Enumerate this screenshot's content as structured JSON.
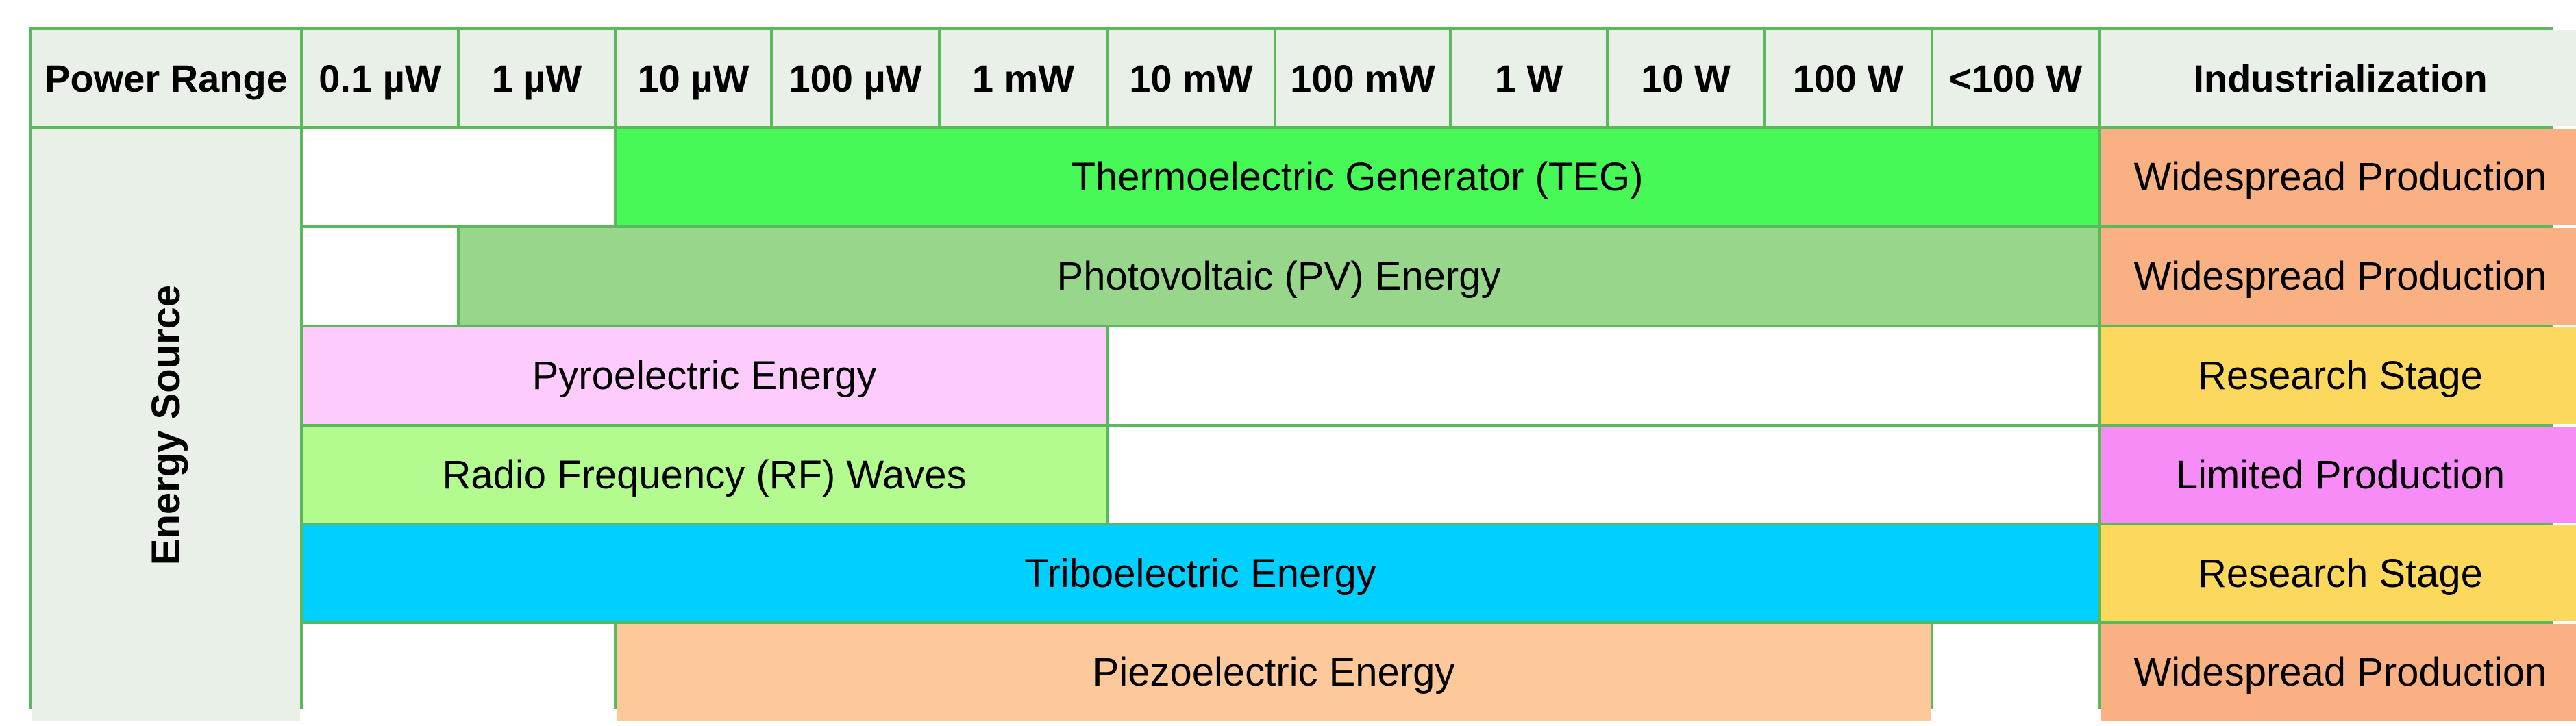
{
  "header": {
    "power_range_label": "Power Range",
    "power_levels": [
      "0.1 µW",
      "1 µW",
      "10 µW",
      "100 µW",
      "1 mW",
      "10 mW",
      "100 mW",
      "1 W",
      "10 W",
      "100 W",
      "<100 W"
    ],
    "industrialization_label": "Industrialization"
  },
  "row_axis_label": "Energy Source",
  "rows": [
    {
      "label": "Thermoelectric Generator (TEG)",
      "range": [
        "10 µW",
        "<100 W"
      ],
      "color": "#46f956",
      "status": "Widespread Production",
      "status_color": "#f9b183"
    },
    {
      "label": "Photovoltaic (PV) Energy",
      "range": [
        "1 µW",
        "<100 W"
      ],
      "color": "#98d68c",
      "status": "Widespread Production",
      "status_color": "#f9b183"
    },
    {
      "label": "Pyroelectric Energy",
      "range": [
        "0.1 µW",
        "1 mW"
      ],
      "color": "#fecbfd",
      "status": "Research Stage",
      "status_color": "#fcd85d"
    },
    {
      "label": "Radio Frequency (RF) Waves",
      "range": [
        "0.1 µW",
        "1 mW"
      ],
      "color": "#b3fb8f",
      "status": "Limited Production",
      "status_color": "#f88cf6"
    },
    {
      "label": "Triboelectric Energy",
      "range": [
        "0.1 µW",
        "<100 W"
      ],
      "color": "#00d0ff",
      "status": "Research Stage",
      "status_color": "#fcd85d"
    },
    {
      "label": "Piezoelectric Energy",
      "range": [
        "10 µW",
        "100 W"
      ],
      "color": "#fdc99a",
      "status": "Widespread Production",
      "status_color": "#f9b183"
    }
  ]
}
